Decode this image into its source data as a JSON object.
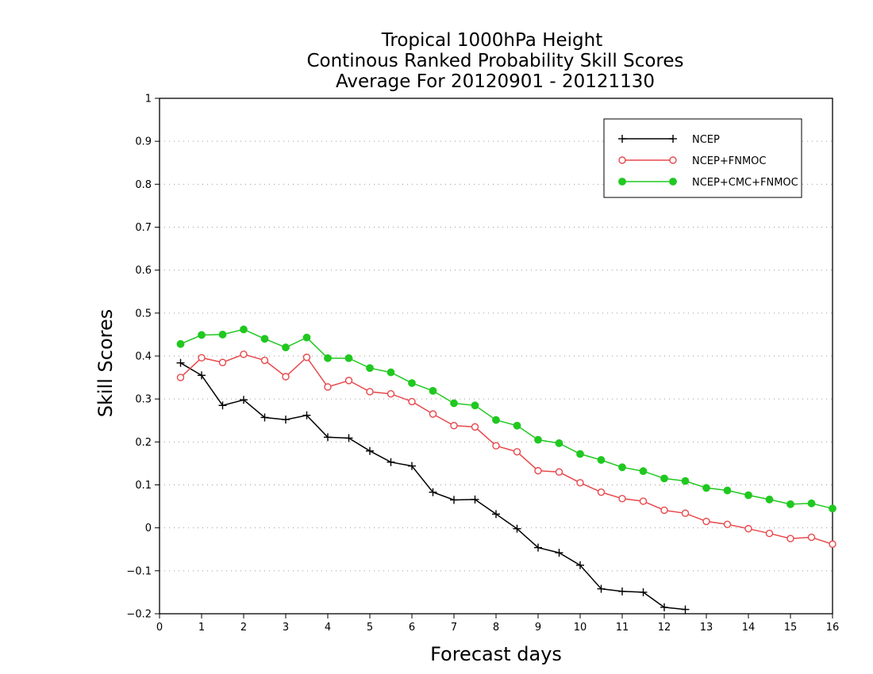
{
  "chart_data": {
    "type": "line",
    "title": [
      "Tropical 1000hPa Height",
      "Continous Ranked Probability Skill Scores",
      "Average For 20120901 - 20121130"
    ],
    "xlabel": "Forecast days",
    "ylabel": "Skill Scores",
    "xlim": [
      0,
      16
    ],
    "ylim": [
      -0.2,
      1
    ],
    "xticks": [
      "0",
      "1",
      "2",
      "3",
      "4",
      "5",
      "6",
      "7",
      "8",
      "9",
      "10",
      "11",
      "12",
      "13",
      "14",
      "15",
      "16"
    ],
    "yticks": [
      "−0.2",
      "−0.1",
      "0",
      "0.1",
      "0.2",
      "0.3",
      "0.4",
      "0.5",
      "0.6",
      "0.7",
      "0.8",
      "0.9",
      "1"
    ],
    "grid": true,
    "legend_position": "top-right",
    "x": [
      0.5,
      1,
      1.5,
      2,
      2.5,
      3,
      3.5,
      4,
      4.5,
      5,
      5.5,
      6,
      6.5,
      7,
      7.5,
      8,
      8.5,
      9,
      9.5,
      10,
      10.5,
      11,
      11.5,
      12,
      12.5,
      13,
      13.5,
      14,
      14.5,
      15,
      15.5,
      16
    ],
    "series": [
      {
        "name": "NCEP",
        "color": "#000000",
        "marker": "plus",
        "values": [
          0.384,
          0.355,
          0.285,
          0.298,
          0.257,
          0.252,
          0.262,
          0.211,
          0.209,
          0.179,
          0.153,
          0.144,
          0.083,
          0.065,
          0.066,
          0.032,
          -0.002,
          -0.046,
          -0.058,
          -0.087,
          -0.142,
          -0.148,
          -0.15,
          -0.185,
          -0.19,
          null,
          null,
          null,
          null,
          null,
          null,
          null
        ]
      },
      {
        "name": "NCEP+FNMOC",
        "color": "#e8484b",
        "marker": "open-circle",
        "values": [
          0.35,
          0.396,
          0.385,
          0.404,
          0.39,
          0.352,
          0.397,
          0.328,
          0.343,
          0.317,
          0.312,
          0.294,
          0.265,
          0.238,
          0.235,
          0.191,
          0.177,
          0.133,
          0.13,
          0.105,
          0.083,
          0.068,
          0.062,
          0.041,
          0.034,
          0.015,
          0.008,
          -0.002,
          -0.013,
          -0.025,
          -0.022,
          -0.038
        ]
      },
      {
        "name": "NCEP+CMC+FNMOC",
        "color": "#20c820",
        "marker": "filled-circle",
        "values": [
          0.428,
          0.449,
          0.45,
          0.462,
          0.44,
          0.42,
          0.443,
          0.395,
          0.395,
          0.372,
          0.362,
          0.337,
          0.319,
          0.29,
          0.285,
          0.251,
          0.238,
          0.205,
          0.197,
          0.172,
          0.158,
          0.141,
          0.132,
          0.115,
          0.109,
          0.093,
          0.087,
          0.076,
          0.066,
          0.055,
          0.057,
          0.045
        ]
      }
    ]
  }
}
